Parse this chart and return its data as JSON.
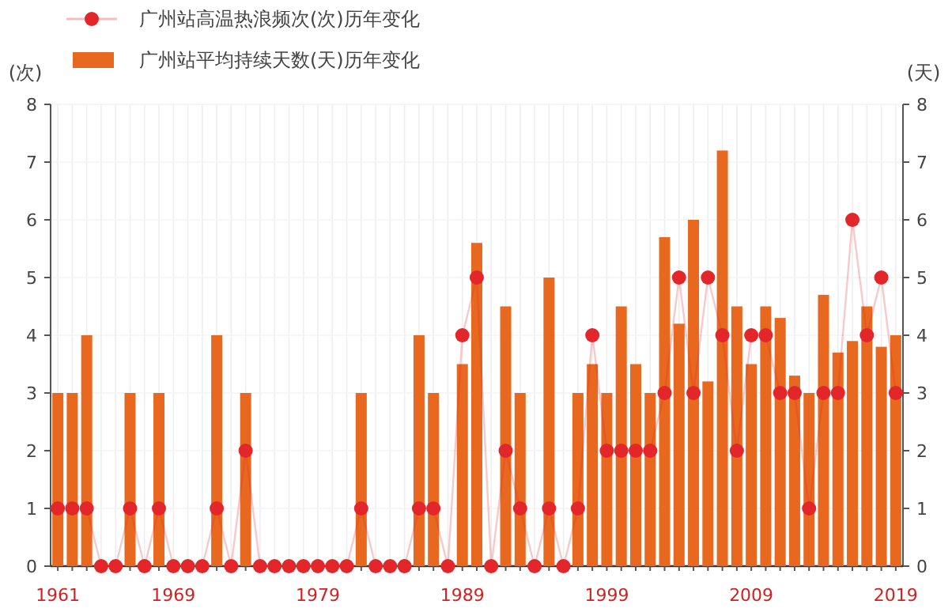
{
  "chart_data": {
    "type": "bar",
    "categories": [
      "1961",
      null,
      null,
      null,
      null,
      null,
      null,
      null,
      "1969",
      null,
      null,
      null,
      null,
      null,
      null,
      null,
      null,
      null,
      "1979",
      null,
      null,
      null,
      null,
      null,
      null,
      null,
      null,
      null,
      "1989",
      null,
      null,
      null,
      null,
      null,
      null,
      null,
      null,
      null,
      "1999",
      null,
      null,
      null,
      null,
      null,
      null,
      null,
      null,
      null,
      "2009",
      null,
      null,
      null,
      null,
      null,
      null,
      null,
      null,
      null,
      "2019"
    ],
    "series": [
      {
        "name": "广州站高温热浪频次(次)历年变化",
        "type": "line",
        "color": "#e3262a",
        "marker": "circle",
        "values": [
          1,
          1,
          1,
          0,
          0,
          1,
          0,
          1,
          0,
          0,
          0,
          1,
          0,
          2,
          0,
          0,
          0,
          0,
          0,
          0,
          0,
          1,
          0,
          0,
          0,
          1,
          1,
          0,
          4,
          5,
          0,
          2,
          1,
          0,
          1,
          0,
          1,
          4,
          2,
          2,
          2,
          2,
          3,
          5,
          3,
          5,
          4,
          2,
          4,
          4,
          3,
          3,
          1,
          3,
          3,
          6,
          4,
          5,
          3
        ]
      },
      {
        "name": "广州站平均持续天数(天)历年变化",
        "axis": "y2",
        "color": "#e8681f",
        "values": [
          3,
          3,
          4,
          0,
          0,
          3,
          0,
          3,
          0,
          0,
          0,
          4,
          0,
          3,
          0,
          0,
          0,
          0,
          0,
          0,
          0,
          3,
          0,
          0,
          0,
          4,
          3,
          0,
          3.5,
          5.6,
          0,
          4.5,
          3,
          0,
          5,
          0,
          3,
          3.5,
          3,
          4.5,
          3.5,
          3,
          5.7,
          4.2,
          6,
          3.2,
          7.2,
          4.5,
          3.5,
          4.5,
          4.3,
          3.3,
          3,
          4.7,
          3.7,
          3.9,
          4.5,
          3.8,
          4
        ]
      }
    ],
    "ylabel": "(次)",
    "y2label": "(天)",
    "ylim": [
      0,
      8
    ],
    "yticks": [
      0,
      1,
      2,
      3,
      4,
      5,
      6,
      7,
      8
    ],
    "y2lim": [
      0,
      8
    ],
    "y2ticks": [
      0,
      1,
      2,
      3,
      4,
      5,
      6,
      7,
      8
    ],
    "grid": true,
    "legend": "top left"
  }
}
